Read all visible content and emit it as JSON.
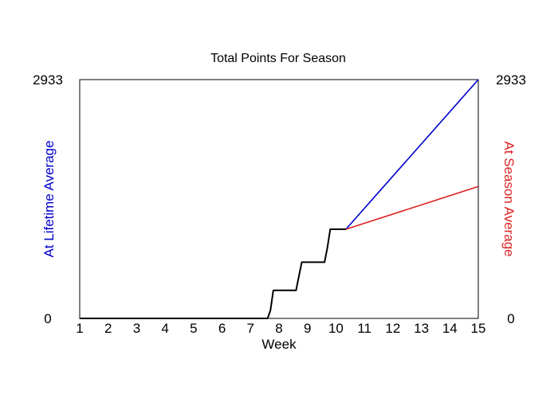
{
  "chart_data": {
    "type": "line",
    "title": "Total Points For Season",
    "xlabel": "Week",
    "ylabel_left": "At Lifetime Average",
    "ylabel_right": "At Season Average",
    "xlim": [
      1,
      15
    ],
    "ylim": [
      0,
      2933
    ],
    "x_ticks": [
      "1",
      "2",
      "3",
      "4",
      "5",
      "6",
      "7",
      "8",
      "9",
      "10",
      "11",
      "12",
      "13",
      "14",
      "15"
    ],
    "y_ticks_left": [
      "0",
      "2933"
    ],
    "y_ticks_right": [
      "0",
      "2933"
    ],
    "grid": false,
    "colors": {
      "actual": "#000000",
      "lifetime": "#0000cc",
      "season": "#dd2222",
      "left_label": "#0000cc",
      "right_label": "#dd2222"
    },
    "series": [
      {
        "key": "actual",
        "x": [
          1,
          7.6,
          7.7,
          7.8,
          8.0,
          8.6,
          8.7,
          8.8,
          9.0,
          9.6,
          9.7,
          9.8,
          10.0,
          10.35
        ],
        "y": [
          0,
          0,
          100,
          345,
          345,
          345,
          520,
          690,
          690,
          690,
          870,
          1095,
          1095,
          1095
        ]
      },
      {
        "key": "lifetime",
        "x": [
          10.35,
          15
        ],
        "y": [
          1095,
          2933
        ]
      },
      {
        "key": "season",
        "x": [
          10.35,
          15
        ],
        "y": [
          1095,
          1620
        ]
      }
    ]
  }
}
